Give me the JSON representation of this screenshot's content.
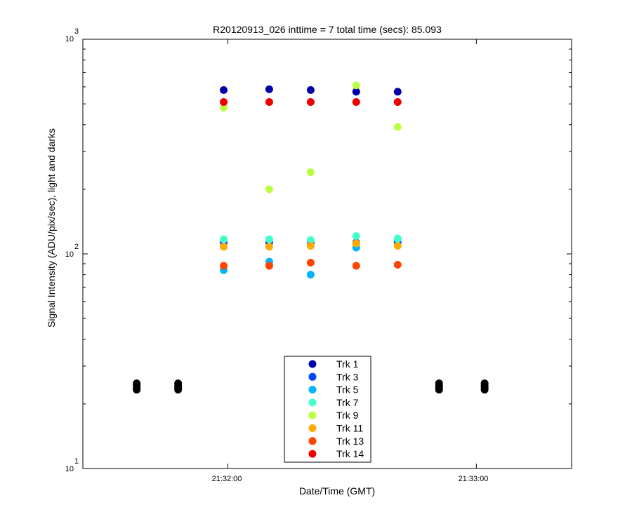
{
  "chart_data": {
    "type": "scatter",
    "title": "R20120913_026 inttime = 7 total time (secs): 85.093",
    "xlabel": "Date/Time (GMT)",
    "ylabel": "Signal Intensity (ADU/pix/sec), light and darks",
    "x_ticks": [
      "21:32:00",
      "21:33:00"
    ],
    "x_range": [
      "21:31:25",
      "21:33:23"
    ],
    "y_scale": "log",
    "ylim": [
      10,
      1000
    ],
    "y_ticks": [
      {
        "base": "10",
        "exp": "1"
      },
      {
        "base": "10",
        "exp": "2"
      },
      {
        "base": "10",
        "exp": "3"
      }
    ],
    "grid": false,
    "legend_position": "bottom-center",
    "x": [
      "21:31:59",
      "21:32:10",
      "21:32:20",
      "21:32:31",
      "21:32:41"
    ],
    "series": [
      {
        "name": "Trk 1",
        "color": "#0000aa",
        "values": [
          580,
          585,
          580,
          570,
          570
        ]
      },
      {
        "name": "Trk 3",
        "color": "#0044ff",
        "values": [
          113,
          113,
          113,
          113,
          113
        ]
      },
      {
        "name": "Trk 5",
        "color": "#00b4ff",
        "values": [
          84,
          92,
          80,
          107,
          117
        ]
      },
      {
        "name": "Trk 7",
        "color": "#44ffcc",
        "values": [
          117,
          117,
          116,
          121,
          118
        ]
      },
      {
        "name": "Trk 9",
        "color": "#bbff44",
        "values": [
          480,
          200,
          240,
          610,
          390
        ]
      },
      {
        "name": "Trk 11",
        "color": "#ffaa00",
        "values": [
          108,
          108,
          109,
          112,
          109
        ]
      },
      {
        "name": "Trk 13",
        "color": "#ff4400",
        "values": [
          88,
          88,
          91,
          88,
          89
        ]
      },
      {
        "name": "Trk 14",
        "color": "#ee0000",
        "values": [
          510,
          510,
          510,
          510,
          510
        ]
      }
    ],
    "darks": {
      "color": "#000000",
      "x": [
        "21:31:38",
        "21:31:48",
        "21:32:51",
        "21:33:02"
      ],
      "values": [
        24,
        24,
        24,
        24
      ]
    }
  }
}
